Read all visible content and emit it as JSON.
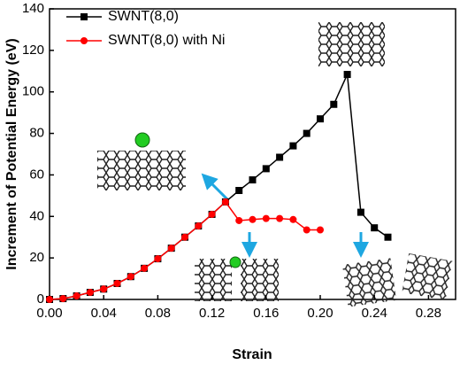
{
  "chart_data": {
    "type": "line",
    "x_label": "Strain",
    "y_label": "Increment of Potential Energy (eV)",
    "x": [
      0,
      0.01,
      0.02,
      0.03,
      0.04,
      0.05,
      0.06,
      0.07,
      0.08,
      0.09,
      0.1,
      0.11,
      0.12,
      0.13,
      0.14,
      0.15,
      0.16,
      0.17,
      0.18,
      0.19,
      0.2,
      0.21,
      0.22,
      0.23,
      0.24,
      0.25
    ],
    "series": [
      {
        "name": "SWNT(8,0)",
        "color": "#000000",
        "marker": "square",
        "values": [
          0,
          0.4,
          1.7,
          3.4,
          5,
          7.7,
          11,
          15,
          19.6,
          24.7,
          30,
          35.4,
          41,
          47,
          52.5,
          57.6,
          63,
          68.5,
          74,
          80,
          87,
          94,
          108.4,
          42,
          34.5,
          30
        ]
      },
      {
        "name": "SWNT(8,0) with Ni",
        "color": "#ff0000",
        "marker": "circle",
        "values": [
          0,
          0.4,
          1.7,
          3.4,
          5,
          7.7,
          11,
          15,
          19.6,
          24.7,
          30,
          35.4,
          41,
          47,
          38,
          38.5,
          39,
          39,
          38.5,
          33.5,
          33.5,
          null,
          null,
          null,
          null,
          null
        ]
      }
    ],
    "xlim": [
      0,
      0.3
    ],
    "ylim": [
      0,
      140
    ],
    "xticks": [
      {
        "value": 0,
        "label": "0.00"
      },
      {
        "value": 0.04,
        "label": "0.04"
      },
      {
        "value": 0.08,
        "label": "0.08"
      },
      {
        "value": 0.12,
        "label": "0.12"
      },
      {
        "value": 0.16,
        "label": "0.16"
      },
      {
        "value": 0.2,
        "label": "0.20"
      },
      {
        "value": 0.24,
        "label": "0.24"
      },
      {
        "value": 0.28,
        "label": "0.28"
      }
    ],
    "yticks": [
      0,
      20,
      40,
      60,
      80,
      100,
      120,
      140
    ],
    "legend": "top-left"
  }
}
